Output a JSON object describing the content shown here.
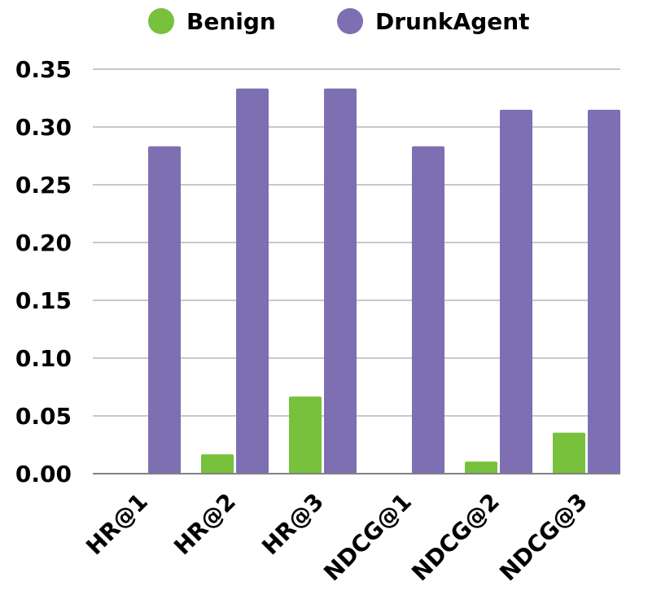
{
  "chart_data": {
    "type": "bar",
    "title": "",
    "xlabel": "",
    "ylabel": "",
    "categories": [
      "HR@1",
      "HR@2",
      "HR@3",
      "NDCG@1",
      "NDCG@2",
      "NDCG@3"
    ],
    "series": [
      {
        "name": "Benign",
        "color": "#77c13c",
        "values": [
          0.0,
          0.0167,
          0.0667,
          0.0,
          0.0105,
          0.0355
        ]
      },
      {
        "name": "DrunkAgent",
        "color": "#7d6fb2",
        "values": [
          0.2833,
          0.3333,
          0.3333,
          0.2833,
          0.3149,
          0.3149
        ]
      }
    ],
    "ylim": [
      0,
      0.35
    ],
    "yticks": [
      "0.00",
      "0.05",
      "0.10",
      "0.15",
      "0.20",
      "0.25",
      "0.30",
      "0.35"
    ],
    "ytick_values": [
      0,
      0.05,
      0.1,
      0.15,
      0.2,
      0.25,
      0.3,
      0.35
    ],
    "grid": true,
    "legend_position": "top-center"
  }
}
